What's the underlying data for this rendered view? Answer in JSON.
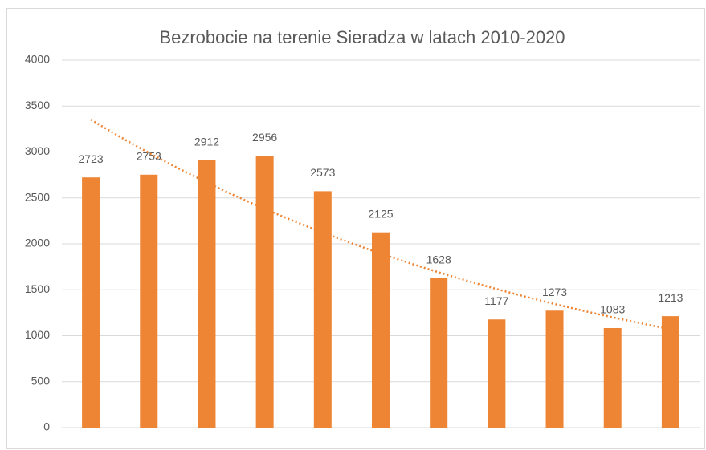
{
  "chart_data": {
    "type": "bar",
    "title": "Bezrobocie na terenie Sieradza w latach 2010-2020",
    "categories": [
      null,
      null,
      null,
      null,
      null,
      null,
      null,
      null,
      null,
      null,
      null
    ],
    "values": [
      2723,
      2753,
      2912,
      2956,
      2573,
      2125,
      1628,
      1177,
      1273,
      1083,
      1213
    ],
    "color": "#ed8534",
    "ylim": [
      0,
      4000
    ],
    "yticks": [
      0,
      500,
      1000,
      1500,
      2000,
      2500,
      3000,
      3500,
      4000
    ],
    "grid": true,
    "data_labels": true,
    "trendline": {
      "type": "exponential",
      "color": "#ed8534"
    }
  }
}
